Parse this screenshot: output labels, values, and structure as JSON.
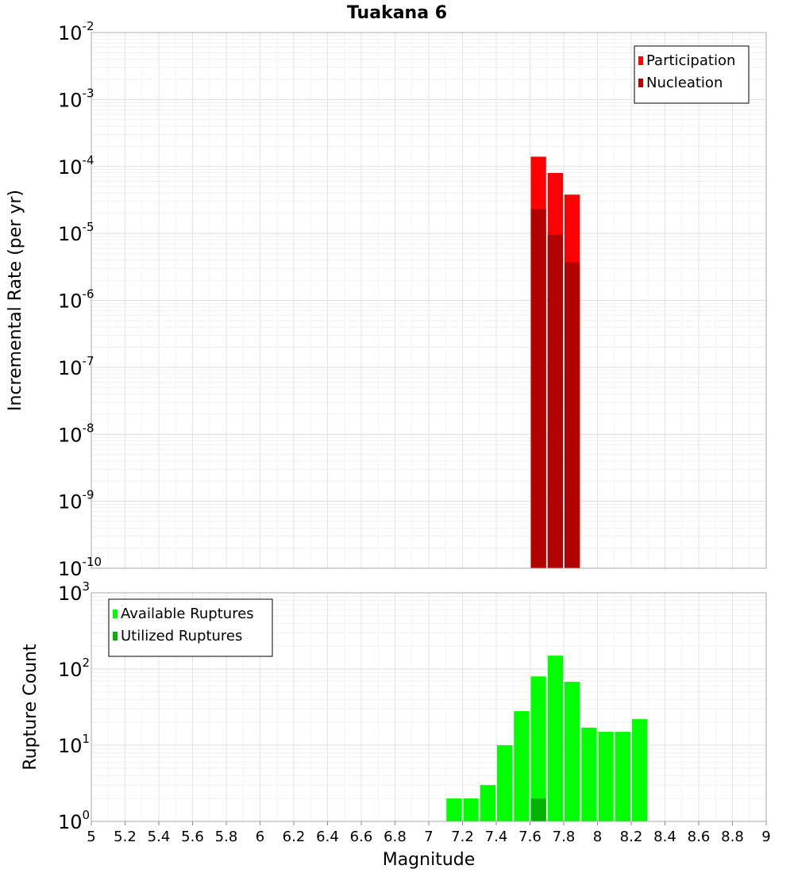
{
  "chart_data": [
    {
      "type": "bar",
      "title": "Tuakana 6",
      "xlabel": "",
      "ylabel": "Incremental Rate (per yr)",
      "yscale": "log",
      "ylim_exponents": [
        -10,
        -2
      ],
      "xlim": [
        5,
        9
      ],
      "grid": true,
      "legend_position": "top-right",
      "bin_width": 0.1,
      "series": [
        {
          "name": "Participation",
          "color": "#ff0000",
          "x": [
            7.65,
            7.75,
            7.85
          ],
          "values": [
            0.00014,
            8e-05,
            3.8e-05
          ]
        },
        {
          "name": "Nucleation",
          "color": "#b30000",
          "x": [
            7.65,
            7.75,
            7.85
          ],
          "values": [
            2.3e-05,
            9.5e-06,
            3.7e-06
          ]
        }
      ]
    },
    {
      "type": "bar",
      "title": "",
      "xlabel": "Magnitude",
      "ylabel": "Rupture Count",
      "yscale": "log",
      "ylim_exponents": [
        0,
        3
      ],
      "xlim": [
        5,
        9
      ],
      "grid": true,
      "legend_position": "top-left",
      "bin_width": 0.1,
      "series": [
        {
          "name": "Available Ruptures",
          "color": "#00ff00",
          "x": [
            6.85,
            7.15,
            7.25,
            7.35,
            7.45,
            7.55,
            7.65,
            7.75,
            7.85,
            7.95,
            8.05,
            8.15,
            8.25
          ],
          "values": [
            1,
            2,
            2,
            3,
            10,
            28,
            80,
            150,
            68,
            17,
            15,
            15,
            22
          ]
        },
        {
          "name": "Utilized Ruptures",
          "color": "#00b300",
          "x": [
            7.65,
            7.75,
            7.85
          ],
          "values": [
            2,
            1,
            1
          ]
        }
      ]
    }
  ],
  "x_ticks": [
    "5",
    "5.2",
    "5.4",
    "5.6",
    "5.8",
    "6",
    "6.2",
    "6.4",
    "6.6",
    "6.8",
    "7",
    "7.2",
    "7.4",
    "7.6",
    "7.8",
    "8",
    "8.2",
    "8.4",
    "8.6",
    "8.8",
    "9"
  ],
  "y_tick_base": "10",
  "top_y_exponents": [
    "-10",
    "-9",
    "-8",
    "-7",
    "-6",
    "-5",
    "-4",
    "-3",
    "-2"
  ],
  "bottom_y_exponents": [
    "0",
    "1",
    "2",
    "3"
  ]
}
